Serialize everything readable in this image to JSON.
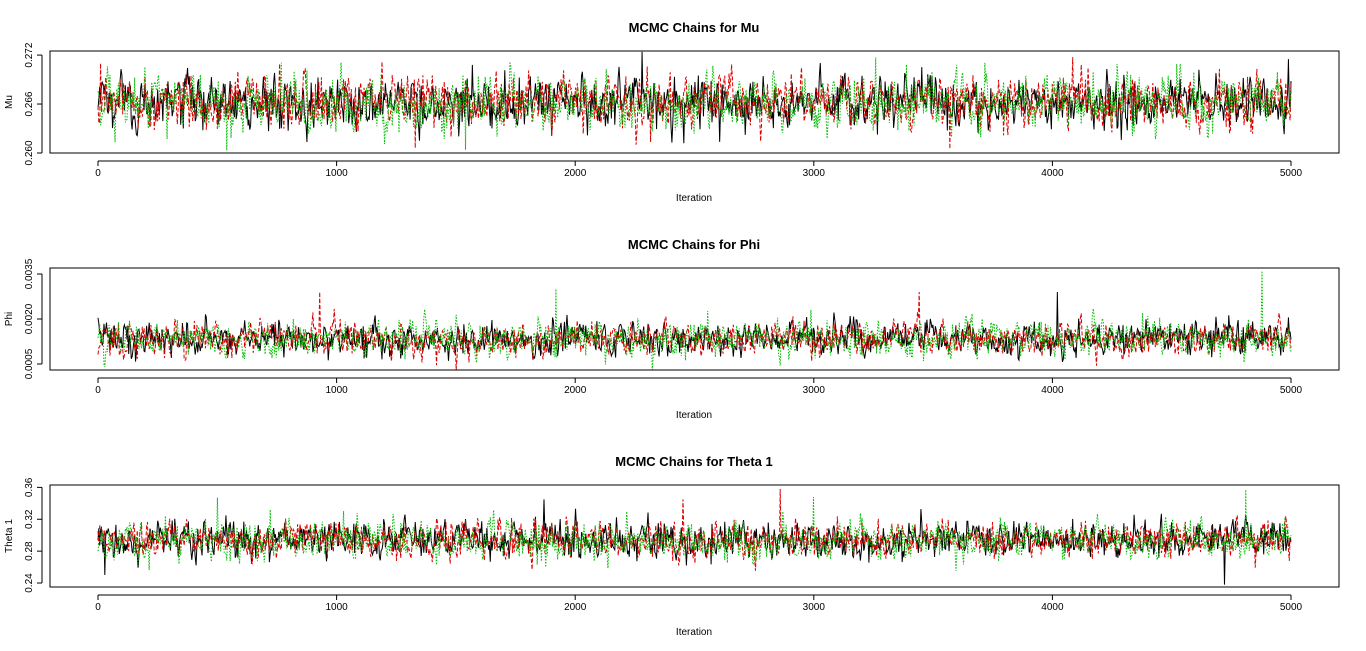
{
  "figure": {
    "panels": [
      {
        "title": "MCMC Chains for Mu",
        "xlabel": "Iteration",
        "ylabel": "Mu",
        "x_ticks": [
          "0",
          "1000",
          "2000",
          "3000",
          "4000",
          "5000"
        ],
        "y_ticks": [
          "0.260",
          "0.266",
          "0.272"
        ]
      },
      {
        "title": "MCMC Chains for Phi",
        "xlabel": "Iteration",
        "ylabel": "Phi",
        "x_ticks": [
          "0",
          "1000",
          "2000",
          "3000",
          "4000",
          "5000"
        ],
        "y_ticks": [
          "0.0005",
          "0.0020",
          "0.0035"
        ]
      },
      {
        "title": "MCMC Chains for Theta 1",
        "xlabel": "Iteration",
        "ylabel": "Theta 1",
        "x_ticks": [
          "0",
          "1000",
          "2000",
          "3000",
          "4000",
          "5000"
        ],
        "y_ticks": [
          "0.24",
          "0.28",
          "0.32",
          "0.36"
        ]
      }
    ]
  },
  "chart_data": [
    {
      "type": "line",
      "title": "MCMC Chains for Mu",
      "xlabel": "Iteration",
      "ylabel": "Mu",
      "xlim": [
        0,
        5000
      ],
      "ylim": [
        0.26,
        0.2725
      ],
      "x_ticks": [
        0,
        1000,
        2000,
        3000,
        4000,
        5000
      ],
      "y_ticks": [
        0.26,
        0.266,
        0.272
      ],
      "grid": false,
      "series_colors": [
        "#000000",
        "#dd0000",
        "#00bb00"
      ],
      "series_dash": [
        "solid",
        "dashed",
        "dotted"
      ],
      "series_center": [
        0.2662,
        0.2662,
        0.2662
      ],
      "series_spread": [
        0.0016,
        0.0016,
        0.0017
      ],
      "series_extremes": [
        [
          [
            2280,
            0.2724
          ],
          [
            4990,
            0.2715
          ],
          [
            1570,
            0.2708
          ]
        ],
        [
          [
            10,
            0.271
          ],
          [
            1190,
            0.2712
          ],
          [
            3570,
            0.2605
          ],
          [
            1330,
            0.2606
          ]
        ],
        [
          [
            540,
            0.2603
          ],
          [
            1540,
            0.2604
          ],
          [
            3260,
            0.2717
          ],
          [
            4520,
            0.2709
          ]
        ]
      ]
    },
    {
      "type": "line",
      "title": "MCMC Chains for Phi",
      "xlabel": "Iteration",
      "ylabel": "Phi",
      "xlim": [
        0,
        5000
      ],
      "ylim": [
        0.0003,
        0.0037
      ],
      "x_ticks": [
        0,
        1000,
        2000,
        3000,
        4000,
        5000
      ],
      "y_ticks": [
        0.0005,
        0.002,
        0.0035
      ],
      "grid": false,
      "series_colors": [
        "#000000",
        "#dd0000",
        "#00bb00"
      ],
      "series_dash": [
        "solid",
        "dashed",
        "dotted"
      ],
      "series_center": [
        0.00135,
        0.00135,
        0.00135
      ],
      "series_spread": [
        0.00028,
        0.00028,
        0.0003
      ],
      "series_extremes": [
        [
          [
            4020,
            0.0029
          ],
          [
            4100,
            0.0007
          ]
        ],
        [
          [
            930,
            0.0029
          ],
          [
            560,
            0.0007
          ],
          [
            3440,
            0.0029
          ]
        ],
        [
          [
            1920,
            0.003
          ],
          [
            4880,
            0.0036
          ],
          [
            3460,
            0.0006
          ]
        ]
      ]
    },
    {
      "type": "line",
      "title": "MCMC Chains for Theta 1",
      "xlabel": "Iteration",
      "ylabel": "Theta 1",
      "xlim": [
        0,
        5000
      ],
      "ylim": [
        0.235,
        0.363
      ],
      "x_ticks": [
        0,
        1000,
        2000,
        3000,
        4000,
        5000
      ],
      "y_ticks": [
        0.24,
        0.28,
        0.32,
        0.36
      ],
      "grid": false,
      "series_colors": [
        "#000000",
        "#dd0000",
        "#00bb00"
      ],
      "series_dash": [
        "solid",
        "dashed",
        "dotted"
      ],
      "series_center": [
        0.294,
        0.294,
        0.294
      ],
      "series_spread": [
        0.0115,
        0.0115,
        0.012
      ],
      "series_extremes": [
        [
          [
            4720,
            0.238
          ],
          [
            30,
            0.25
          ],
          [
            1870,
            0.345
          ]
        ],
        [
          [
            2860,
            0.358
          ],
          [
            2450,
            0.345
          ]
        ],
        [
          [
            4810,
            0.357
          ],
          [
            500,
            0.347
          ],
          [
            3000,
            0.348
          ]
        ]
      ]
    }
  ]
}
